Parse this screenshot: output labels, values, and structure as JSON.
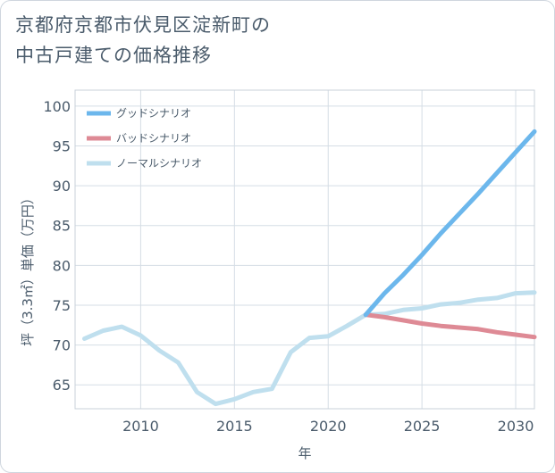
{
  "chart_data": {
    "type": "line",
    "title_line1": "京都府京都市伏見区淀新町の",
    "title_line2": "中古戸建ての価格推移",
    "xlabel": "年",
    "ylabel": "坪（3.3㎡）単価（万円）",
    "xlim": [
      2006.5,
      2031
    ],
    "ylim": [
      62,
      102
    ],
    "xticks": [
      2010,
      2015,
      2020,
      2025,
      2030
    ],
    "yticks": [
      65,
      70,
      75,
      80,
      85,
      90,
      95,
      100
    ],
    "grid": true,
    "legend_position": "top-left",
    "series": [
      {
        "name": "グッドシナリオ",
        "color": "#6cb7ec",
        "x": [
          2022,
          2023,
          2024,
          2025,
          2026,
          2027,
          2028,
          2029,
          2030,
          2031
        ],
        "values": [
          73.8,
          76.5,
          78.8,
          81.3,
          84.0,
          86.5,
          89.0,
          91.6,
          94.2,
          96.8
        ]
      },
      {
        "name": "バッドシナリオ",
        "color": "#de8a95",
        "x": [
          2022,
          2023,
          2024,
          2025,
          2026,
          2027,
          2028,
          2029,
          2030,
          2031
        ],
        "values": [
          73.8,
          73.5,
          73.1,
          72.7,
          72.4,
          72.2,
          72.0,
          71.6,
          71.3,
          71.0
        ]
      },
      {
        "name": "ノーマルシナリオ",
        "color": "#bfdfee",
        "x": [
          2007,
          2008,
          2009,
          2010,
          2011,
          2012,
          2013,
          2014,
          2015,
          2016,
          2017,
          2018,
          2019,
          2020,
          2021,
          2022,
          2023,
          2024,
          2025,
          2026,
          2027,
          2028,
          2029,
          2030,
          2031
        ],
        "values": [
          70.8,
          71.8,
          72.3,
          71.2,
          69.3,
          67.8,
          64.1,
          62.6,
          63.2,
          64.1,
          64.5,
          69.1,
          70.9,
          71.1,
          72.4,
          73.8,
          73.9,
          74.4,
          74.6,
          75.1,
          75.3,
          75.7,
          75.9,
          76.5,
          76.6
        ]
      }
    ]
  }
}
